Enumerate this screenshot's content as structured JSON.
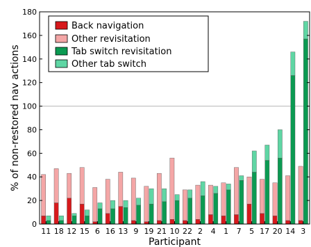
{
  "chart_data": {
    "type": "bar",
    "stacked": true,
    "xlabel": "Participant",
    "ylabel": "% of non-restored nav actions",
    "ylim": [
      0,
      180
    ],
    "yticks": [
      0,
      20,
      40,
      60,
      80,
      100,
      120,
      140,
      160,
      180
    ],
    "reference_line": 100,
    "grid": false,
    "legend_position": "top-left",
    "categories": [
      "11",
      "18",
      "12",
      "15",
      "6",
      "16",
      "13",
      "9",
      "19",
      "21",
      "10",
      "22",
      "2",
      "4",
      "1",
      "7",
      "5",
      "17",
      "20",
      "14",
      "3"
    ],
    "series": [
      {
        "name": "Back navigation",
        "group": "left",
        "color": "#d7191c",
        "values": [
          7,
          18,
          22,
          17,
          2,
          9,
          15,
          3,
          2,
          3,
          4,
          3,
          4,
          8,
          7,
          8,
          17,
          9,
          7,
          3,
          3
        ]
      },
      {
        "name": "Other revisitation",
        "group": "left",
        "color": "#f4a6a6",
        "values": [
          35,
          29,
          21,
          31,
          29,
          29,
          29,
          36,
          30,
          40,
          52,
          26,
          29,
          25,
          28,
          40,
          23,
          29,
          28,
          38,
          46
        ]
      },
      {
        "name": "Tab switch revisitation",
        "group": "right",
        "color": "#0b9a52",
        "values": [
          3,
          3,
          7,
          7,
          13,
          13,
          14,
          16,
          17,
          19,
          20,
          22,
          24,
          26,
          29,
          37,
          44,
          54,
          56,
          126,
          157
        ]
      },
      {
        "name": "Other tab switch",
        "group": "right",
        "color": "#5fd6a4",
        "values": [
          4,
          4,
          2,
          5,
          5,
          7,
          6,
          6,
          13,
          11,
          5,
          7,
          12,
          6,
          5,
          4,
          18,
          13,
          24,
          20,
          15
        ]
      }
    ]
  }
}
